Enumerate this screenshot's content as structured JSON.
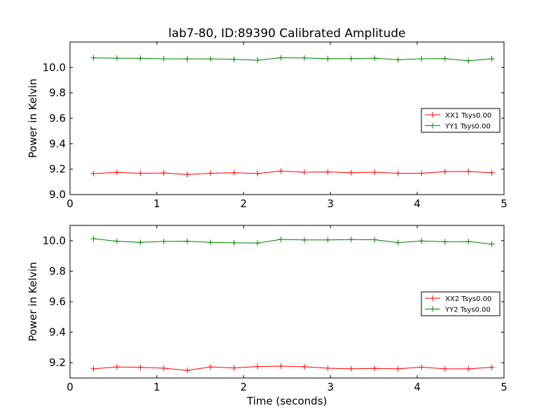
{
  "title": "lab7-80, ID:89390 Calibrated Amplitude",
  "xlabel": "Time (seconds)",
  "colors": {
    "xx": "#ff0000",
    "yy": "#008000",
    "axes": "#000000",
    "background": "#ffffff"
  },
  "chart_data": [
    {
      "type": "line",
      "title": "lab7-80, ID:89390 Calibrated Amplitude",
      "xlabel": "",
      "ylabel": "Power in Kelvin",
      "xlim": [
        0,
        5
      ],
      "ylim": [
        9.0,
        10.2
      ],
      "xticks": [
        0,
        1,
        2,
        3,
        4,
        5
      ],
      "xtick_labels": [
        "0",
        "1",
        "2",
        "3",
        "4",
        "5"
      ],
      "yticks": [
        9.0,
        9.2,
        9.4,
        9.6,
        9.8,
        10.0
      ],
      "ytick_labels": [
        "9.0",
        "9.2",
        "9.4",
        "9.6",
        "9.8",
        "10.0"
      ],
      "grid": false,
      "legend_position": "center-right",
      "marker": "+",
      "x": [
        0.27,
        0.54,
        0.81,
        1.08,
        1.35,
        1.62,
        1.89,
        2.16,
        2.43,
        2.7,
        2.97,
        3.24,
        3.51,
        3.78,
        4.05,
        4.32,
        4.59,
        4.86
      ],
      "series": [
        {
          "name": "XX1 Tsys0.00",
          "color": "#ff0000",
          "values": [
            9.165,
            9.175,
            9.168,
            9.17,
            9.158,
            9.168,
            9.172,
            9.166,
            9.185,
            9.176,
            9.178,
            9.172,
            9.176,
            9.168,
            9.168,
            9.18,
            9.182,
            9.172
          ]
        },
        {
          "name": "YY1 Tsys0.00",
          "color": "#008000",
          "values": [
            10.075,
            10.073,
            10.072,
            10.068,
            10.067,
            10.067,
            10.064,
            10.057,
            10.076,
            10.074,
            10.069,
            10.069,
            10.073,
            10.06,
            10.068,
            10.069,
            10.052,
            10.068
          ]
        }
      ]
    },
    {
      "type": "line",
      "title": "",
      "xlabel": "Time (seconds)",
      "ylabel": "Power in Kelvin",
      "xlim": [
        0,
        5
      ],
      "ylim": [
        9.1,
        10.1
      ],
      "xticks": [
        0,
        1,
        2,
        3,
        4,
        5
      ],
      "xtick_labels": [
        "0",
        "1",
        "2",
        "3",
        "4",
        "5"
      ],
      "yticks": [
        9.2,
        9.4,
        9.6,
        9.8,
        10.0
      ],
      "ytick_labels": [
        "9.2",
        "9.4",
        "9.6",
        "9.8",
        "10.0"
      ],
      "grid": false,
      "legend_position": "center-right",
      "marker": "+",
      "x": [
        0.27,
        0.54,
        0.81,
        1.08,
        1.35,
        1.62,
        1.89,
        2.16,
        2.43,
        2.7,
        2.97,
        3.24,
        3.51,
        3.78,
        4.05,
        4.32,
        4.59,
        4.86
      ],
      "series": [
        {
          "name": "XX2 Tsys0.00",
          "color": "#ff0000",
          "values": [
            9.16,
            9.172,
            9.17,
            9.164,
            9.15,
            9.172,
            9.166,
            9.175,
            9.178,
            9.174,
            9.164,
            9.16,
            9.163,
            9.16,
            9.171,
            9.16,
            9.16,
            9.17
          ]
        },
        {
          "name": "YY2 Tsys0.00",
          "color": "#008000",
          "values": [
            10.013,
            9.996,
            9.989,
            9.995,
            9.996,
            9.989,
            9.986,
            9.984,
            10.008,
            10.005,
            10.005,
            10.007,
            10.006,
            9.987,
            9.998,
            9.993,
            9.994,
            9.978
          ]
        }
      ]
    }
  ]
}
